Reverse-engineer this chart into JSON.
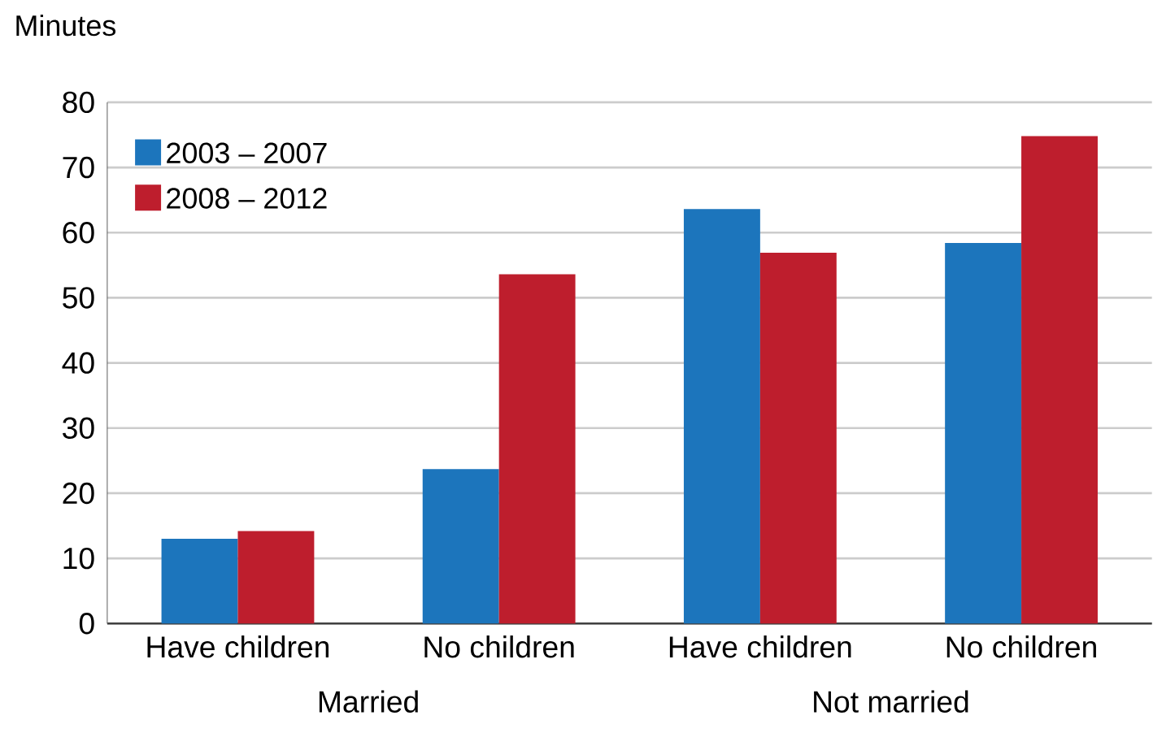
{
  "chart_data": {
    "type": "bar",
    "ylabel": "Minutes",
    "categories": [
      "Have children",
      "No children",
      "Have children",
      "No children"
    ],
    "series": [
      {
        "name": "2003 – 2007",
        "color": "#1c75bc",
        "values": [
          13.0,
          23.7,
          63.6,
          58.4
        ]
      },
      {
        "name": "2008 – 2012",
        "color": "#be1e2d",
        "values": [
          14.2,
          53.6,
          56.9,
          74.8
        ]
      }
    ],
    "ylim": [
      0,
      80
    ],
    "yticks": [
      0,
      10,
      20,
      30,
      40,
      50,
      60,
      70,
      80
    ],
    "grid": "y",
    "legend": "top left",
    "annotations": [
      "Married",
      "Not married"
    ]
  }
}
